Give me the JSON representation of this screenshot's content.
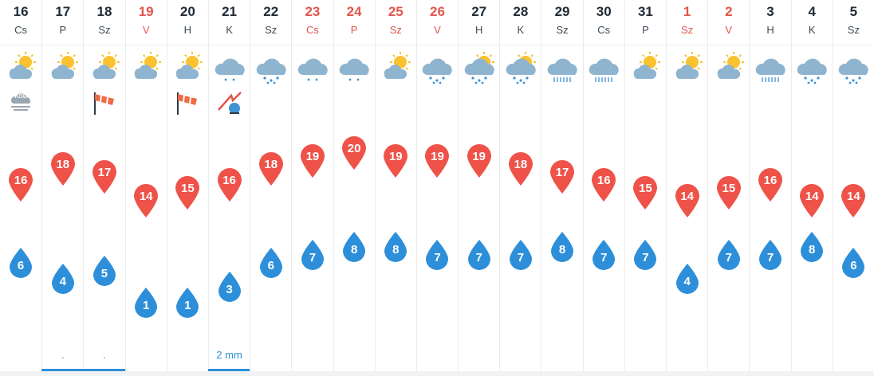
{
  "colors": {
    "weekend_text": "#e2554c",
    "max_pin": "#ee5248",
    "min_drop": "#2d8fd9",
    "text_dark": "#1f2b36"
  },
  "days": [
    {
      "date": "16",
      "dow": "Cs",
      "weekend": false,
      "icon": "sun-cloud-icon",
      "extra": "fog-icon",
      "extra_text": "KÖD",
      "max": "16",
      "min": "6",
      "precip": "",
      "precip_bar": false
    },
    {
      "date": "17",
      "dow": "P",
      "weekend": false,
      "icon": "sun-cloud-icon",
      "extra": "",
      "extra_text": "",
      "max": "18",
      "min": "4",
      "precip": ".",
      "precip_bar": true
    },
    {
      "date": "18",
      "dow": "Sz",
      "weekend": false,
      "icon": "sun-cloud-icon",
      "extra": "windsock-icon",
      "extra_text": "",
      "max": "17",
      "min": "5",
      "precip": ".",
      "precip_bar": true
    },
    {
      "date": "19",
      "dow": "V",
      "weekend": true,
      "icon": "sun-cloud-icon",
      "extra": "",
      "extra_text": "",
      "max": "14",
      "min": "1",
      "precip": "",
      "precip_bar": false
    },
    {
      "date": "20",
      "dow": "H",
      "weekend": false,
      "icon": "sun-cloud-icon",
      "extra": "windsock-icon",
      "extra_text": "",
      "max": "15",
      "min": "1",
      "precip": "",
      "precip_bar": false
    },
    {
      "date": "21",
      "dow": "K",
      "weekend": false,
      "icon": "cloud-drizzle-icon",
      "extra": "storm-wind-icon",
      "extra_text": "",
      "max": "16",
      "min": "3",
      "precip": "2 mm",
      "precip_bar": true
    },
    {
      "date": "22",
      "dow": "Sz",
      "weekend": false,
      "icon": "cloud-rain-icon",
      "extra": "",
      "extra_text": "",
      "max": "18",
      "min": "6",
      "precip": "",
      "precip_bar": false
    },
    {
      "date": "23",
      "dow": "Cs",
      "weekend": true,
      "icon": "cloud-drizzle-icon",
      "extra": "",
      "extra_text": "",
      "max": "19",
      "min": "7",
      "precip": "",
      "precip_bar": false
    },
    {
      "date": "24",
      "dow": "P",
      "weekend": true,
      "icon": "cloud-drizzle-icon",
      "extra": "",
      "extra_text": "",
      "max": "20",
      "min": "8",
      "precip": "",
      "precip_bar": false
    },
    {
      "date": "25",
      "dow": "Sz",
      "weekend": true,
      "icon": "sun-cloud-icon",
      "extra": "",
      "extra_text": "",
      "max": "19",
      "min": "8",
      "precip": "",
      "precip_bar": false
    },
    {
      "date": "26",
      "dow": "V",
      "weekend": true,
      "icon": "cloud-rain-icon",
      "extra": "",
      "extra_text": "",
      "max": "19",
      "min": "7",
      "precip": "",
      "precip_bar": false
    },
    {
      "date": "27",
      "dow": "H",
      "weekend": false,
      "icon": "sun-cloud-rain-icon",
      "extra": "",
      "extra_text": "",
      "max": "19",
      "min": "7",
      "precip": "",
      "precip_bar": false
    },
    {
      "date": "28",
      "dow": "K",
      "weekend": false,
      "icon": "sun-cloud-rain-icon",
      "extra": "",
      "extra_text": "",
      "max": "18",
      "min": "7",
      "precip": "",
      "precip_bar": false
    },
    {
      "date": "29",
      "dow": "Sz",
      "weekend": false,
      "icon": "cloud-heavy-rain-icon",
      "extra": "",
      "extra_text": "",
      "max": "17",
      "min": "8",
      "precip": "",
      "precip_bar": false
    },
    {
      "date": "30",
      "dow": "Cs",
      "weekend": false,
      "icon": "cloud-heavy-rain-icon",
      "extra": "",
      "extra_text": "",
      "max": "16",
      "min": "7",
      "precip": "",
      "precip_bar": false
    },
    {
      "date": "31",
      "dow": "P",
      "weekend": false,
      "icon": "sun-cloud-icon",
      "extra": "",
      "extra_text": "",
      "max": "15",
      "min": "7",
      "precip": "",
      "precip_bar": false
    },
    {
      "date": "1",
      "dow": "Sz",
      "weekend": true,
      "icon": "sun-cloud-icon",
      "extra": "",
      "extra_text": "",
      "max": "14",
      "min": "4",
      "precip": "",
      "precip_bar": false
    },
    {
      "date": "2",
      "dow": "V",
      "weekend": true,
      "icon": "sun-cloud-icon",
      "extra": "",
      "extra_text": "",
      "max": "15",
      "min": "7",
      "precip": "",
      "precip_bar": false
    },
    {
      "date": "3",
      "dow": "H",
      "weekend": false,
      "icon": "cloud-heavy-rain-icon",
      "extra": "",
      "extra_text": "",
      "max": "16",
      "min": "7",
      "precip": "",
      "precip_bar": false
    },
    {
      "date": "4",
      "dow": "K",
      "weekend": false,
      "icon": "cloud-rain-icon",
      "extra": "",
      "extra_text": "",
      "max": "14",
      "min": "8",
      "precip": "",
      "precip_bar": false
    },
    {
      "date": "5",
      "dow": "Sz",
      "weekend": false,
      "icon": "cloud-rain-icon",
      "extra": "",
      "extra_text": "",
      "max": "14",
      "min": "6",
      "precip": "",
      "precip_bar": false
    }
  ]
}
